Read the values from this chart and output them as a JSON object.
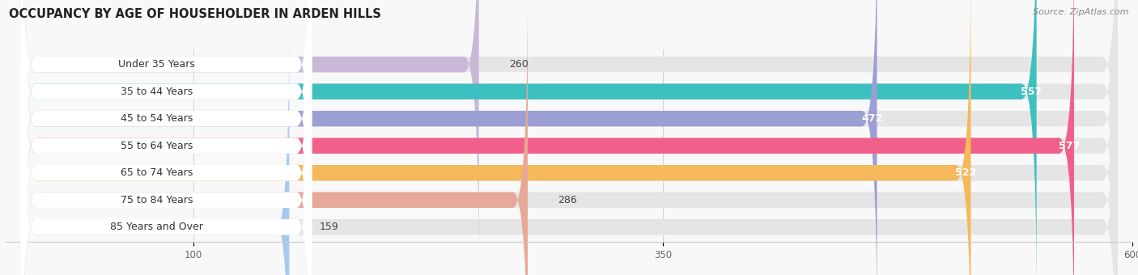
{
  "title": "OCCUPANCY BY AGE OF HOUSEHOLDER IN ARDEN HILLS",
  "source": "Source: ZipAtlas.com",
  "categories": [
    "Under 35 Years",
    "35 to 44 Years",
    "45 to 54 Years",
    "55 to 64 Years",
    "65 to 74 Years",
    "75 to 84 Years",
    "85 Years and Over"
  ],
  "values": [
    260,
    557,
    472,
    577,
    522,
    286,
    159
  ],
  "bar_colors": [
    "#c9b8d8",
    "#3dc0bf",
    "#9b9fd4",
    "#f0608a",
    "#f5b85a",
    "#e8a898",
    "#a8c8f0"
  ],
  "bar_bg_color": "#e5e5e5",
  "label_bg_color": "#ffffff",
  "xlim_min": 0,
  "xlim_max": 600,
  "xticks": [
    100,
    350,
    600
  ],
  "title_fontsize": 10.5,
  "label_fontsize": 9,
  "value_fontsize": 9,
  "bar_height": 0.58,
  "background_color": "#f8f8f8"
}
